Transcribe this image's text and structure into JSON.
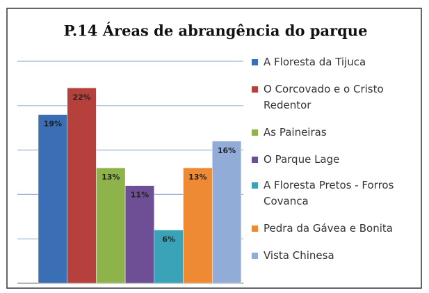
{
  "chart_data": {
    "type": "bar",
    "title": "P.14 Áreas de abrangência do parque",
    "categories": [
      "A Floresta da Tijuca",
      "O Corcovado e o Cristo Redentor",
      "As Paineiras",
      "O Parque Lage",
      "A Floresta Pretos - Forros Covanca",
      "Pedra da Gávea e Bonita",
      "Vista Chinesa"
    ],
    "values": [
      19,
      22,
      13,
      11,
      6,
      13,
      16
    ],
    "value_labels": [
      "19%",
      "22%",
      "13%",
      "11%",
      "6%",
      "13%",
      "16%"
    ],
    "colors": [
      "#3a6fb5",
      "#b5403c",
      "#8db34a",
      "#6e4f95",
      "#3aa3b8",
      "#ee8a34",
      "#92acd8"
    ],
    "ylim": [
      0,
      25
    ],
    "yticks": [
      0,
      5,
      10,
      15,
      20,
      25
    ],
    "grid": true,
    "legend": "right"
  }
}
